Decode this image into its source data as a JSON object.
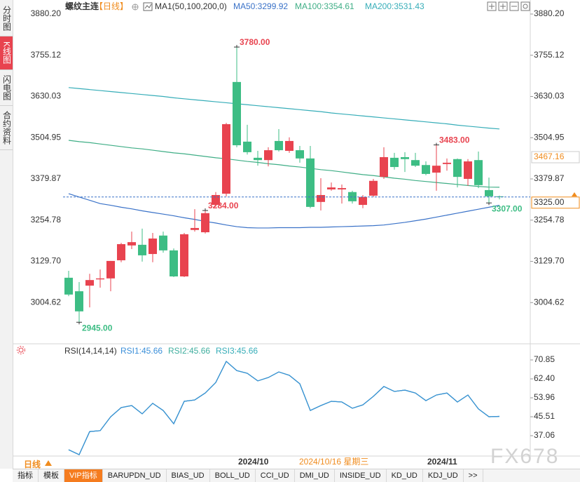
{
  "sidebar": [
    "分时图",
    "K线图",
    "闪电图",
    "合约资料"
  ],
  "period_button": "日线",
  "toolbar": [
    "指标",
    "模板",
    "VIP指标",
    "BARUPDN_UD",
    "BIAS_UD",
    "BOLL_UD",
    "CCI_UD",
    "DMI_UD",
    "INSIDE_UD",
    "KD_UD",
    "KDJ_UD",
    ">>"
  ],
  "watermark": "FX678",
  "chart_data": [
    {
      "type": "candlestick",
      "title": "螺纹主连",
      "period": "【日线】",
      "indicator": "MA1(50,100,200,0)",
      "categories": [
        null,
        null,
        null,
        null,
        null,
        null,
        null,
        null,
        null,
        null,
        null,
        null,
        null,
        null,
        null,
        null,
        "2024/10",
        null,
        null,
        null,
        null,
        null,
        null,
        null,
        null,
        null,
        null,
        null,
        null,
        null,
        null,
        null,
        null,
        null,
        "2024/11",
        null,
        null,
        null,
        null,
        null,
        null,
        null
      ],
      "open": [
        3080,
        3039,
        3056,
        3075,
        3078,
        3133,
        3178,
        3180,
        3152,
        3208,
        3163,
        3084,
        3225,
        3218,
        3301,
        3335,
        3674,
        3493,
        3444,
        3437,
        3495,
        3465,
        3467,
        3442,
        3310,
        3348,
        3348,
        3340,
        3301,
        3329,
        3386,
        3444,
        3446,
        3437,
        3422,
        3399,
        3425,
        3440,
        3380,
        3437,
        3346,
        3327
      ],
      "high": [
        3101,
        3067,
        3092,
        3105,
        3131,
        3186,
        3220,
        3229,
        3216,
        3220,
        3169,
        3216,
        3288,
        3284,
        3340,
        3550,
        3780,
        3544,
        3465,
        3476,
        3531,
        3506,
        3480,
        3480,
        3382,
        3369,
        3363,
        3344,
        3331,
        3380,
        3476,
        3459,
        3461,
        3459,
        3433,
        3483,
        3442,
        3442,
        3440,
        3463,
        3384,
        3329
      ],
      "low": [
        3024,
        2945,
        2990,
        3050,
        3039,
        3127,
        3167,
        3129,
        3127,
        3156,
        3082,
        3082,
        3220,
        3214,
        3295,
        3327,
        3476,
        3454,
        3420,
        3418,
        3463,
        3459,
        3429,
        3291,
        3284,
        3344,
        3305,
        3305,
        3291,
        3325,
        3380,
        3408,
        3401,
        3416,
        3391,
        3344,
        3405,
        3354,
        3359,
        3352,
        3307,
        3318
      ],
      "close": [
        3029,
        2978,
        3073,
        3078,
        3131,
        3182,
        3188,
        3148,
        3199,
        3163,
        3084,
        3212,
        3231,
        3276,
        3331,
        3546,
        3482,
        3461,
        3437,
        3467,
        3467,
        3495,
        3442,
        3295,
        3331,
        3354,
        3352,
        3312,
        3325,
        3374,
        3446,
        3416,
        3440,
        3420,
        3395,
        3420,
        3429,
        3386,
        3433,
        3361,
        3327,
        3325
      ],
      "up_color": "#e8434f",
      "down_color": "#3dbd84",
      "series": [
        {
          "name": "MA50:3299.92",
          "color": "#3a72c8",
          "values": [
            3335,
            3325,
            3315,
            3305,
            3300,
            3294,
            3289,
            3283,
            3278,
            3273,
            3268,
            3262,
            3257,
            3251,
            3246,
            3240,
            3235,
            3232,
            3231,
            3231,
            3232,
            3232,
            3232,
            3233,
            3233,
            3234,
            3235,
            3236,
            3237,
            3238,
            3240,
            3244,
            3248,
            3253,
            3258,
            3264,
            3270,
            3276,
            3282,
            3288,
            3294,
            3299.92
          ]
        },
        {
          "name": "MA100:3354.61",
          "color": "#3fae86",
          "values": [
            3497,
            3493,
            3490,
            3486,
            3482,
            3478,
            3474,
            3471,
            3467,
            3463,
            3459,
            3456,
            3452,
            3448,
            3444,
            3441,
            3437,
            3433,
            3430,
            3426,
            3423,
            3419,
            3416,
            3412,
            3408,
            3405,
            3401,
            3397,
            3393,
            3390,
            3386,
            3382,
            3379,
            3375,
            3372,
            3369,
            3366,
            3363,
            3360,
            3357,
            3355,
            3354.61
          ]
        },
        {
          "name": "MA200:3531.43",
          "color": "#36adb8",
          "values": [
            3657,
            3654,
            3651,
            3648,
            3645,
            3642,
            3639,
            3636,
            3633,
            3630,
            3626,
            3623,
            3620,
            3617,
            3614,
            3611,
            3608,
            3605,
            3602,
            3599,
            3596,
            3593,
            3590,
            3587,
            3584,
            3580,
            3577,
            3574,
            3571,
            3568,
            3565,
            3562,
            3559,
            3556,
            3553,
            3550,
            3547,
            3543,
            3540,
            3537,
            3534,
            3531.43
          ]
        }
      ],
      "annotations": [
        {
          "value": 3780,
          "label": "3780.00"
        },
        {
          "value": 2945,
          "label": "2945.00"
        },
        {
          "value": 3284,
          "label": "3284.00"
        },
        {
          "value": 3483,
          "label": "3483.00"
        },
        {
          "value": 3307,
          "label": "3307.00"
        }
      ],
      "price_line": {
        "value": 3325,
        "label": "3325.00"
      },
      "cursor": {
        "date": "2024/10/16 星期三",
        "price": {
          "value": 3467.16,
          "label": "3467.16"
        }
      },
      "ylim": [
        2879.6,
        3880.2
      ],
      "yticks": [
        {
          "value": 3880.2,
          "label": "3880.20"
        },
        3755.12,
        3630.03,
        3504.95,
        3379.87,
        3254.78,
        {
          "value": 3129.7,
          "label": "3129.70"
        },
        3004.62
      ],
      "left_axis": true
    },
    {
      "type": "line",
      "title": "RSI(14,14,14)",
      "series": [
        {
          "name": "RSI1:45.66",
          "color": "#3b8fd9",
          "values": [
            30.8,
            28.6,
            38.9,
            39.3,
            45.5,
            49.6,
            50.5,
            46.8,
            51.5,
            48.3,
            42.4,
            52.4,
            53.0,
            56.1,
            60.8,
            70.2,
            66.1,
            64.9,
            61.5,
            63.0,
            65.5,
            64.0,
            60.2,
            48.3,
            50.5,
            52.4,
            52.1,
            49.3,
            50.8,
            54.6,
            59.0,
            56.8,
            57.4,
            56.1,
            52.7,
            55.2,
            56.1,
            52.1,
            55.2,
            49.0,
            45.5,
            45.66
          ]
        },
        {
          "name": "RSI2:45.66",
          "color": "#3fae9e",
          "values": [
            30.8,
            28.6,
            38.9,
            39.3,
            45.5,
            49.6,
            50.5,
            46.8,
            51.5,
            48.3,
            42.4,
            52.4,
            53.0,
            56.1,
            60.8,
            70.2,
            66.1,
            64.9,
            61.5,
            63.0,
            65.5,
            64.0,
            60.2,
            48.3,
            50.5,
            52.4,
            52.1,
            49.3,
            50.8,
            54.6,
            59.0,
            56.8,
            57.4,
            56.1,
            52.7,
            55.2,
            56.1,
            52.1,
            55.2,
            49.0,
            45.5,
            45.66
          ]
        },
        {
          "name": "RSI3:45.66",
          "color": "#36adb8",
          "values": [
            30.8,
            28.6,
            38.9,
            39.3,
            45.5,
            49.6,
            50.5,
            46.8,
            51.5,
            48.3,
            42.4,
            52.4,
            53.0,
            56.1,
            60.8,
            70.2,
            66.1,
            64.9,
            61.5,
            63.0,
            65.5,
            64.0,
            60.2,
            48.3,
            50.5,
            52.4,
            52.1,
            49.3,
            50.8,
            54.6,
            59.0,
            56.8,
            57.4,
            56.1,
            52.7,
            55.2,
            56.1,
            52.1,
            55.2,
            49.0,
            45.5,
            45.66
          ]
        }
      ],
      "ylim": [
        27.99,
        74.92
      ],
      "yticks": [
        70.85,
        {
          "value": 62.4,
          "label": "62.40"
        },
        53.96,
        45.51,
        37.06
      ]
    }
  ]
}
